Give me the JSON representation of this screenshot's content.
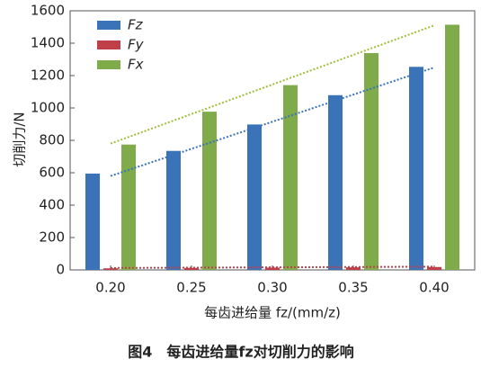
{
  "chart_data": {
    "type": "bar",
    "categories": [
      "0.20",
      "0.25",
      "0.30",
      "0.35",
      "0.40"
    ],
    "series": [
      {
        "name": "Fz",
        "color": "#3b73b9",
        "values": [
          595,
          735,
          898,
          1079,
          1254
        ]
      },
      {
        "name": "Fy",
        "color": "#c0404a",
        "values": [
          10,
          12,
          14,
          16,
          18
        ]
      },
      {
        "name": "Fx",
        "color": "#7fab4a",
        "values": [
          774,
          977,
          1141,
          1339,
          1514
        ]
      }
    ],
    "trend_lines": [
      {
        "color": "#3b73b9",
        "values": [
          580,
          1250
        ]
      },
      {
        "color": "#c0404a",
        "values": [
          12,
          20
        ]
      },
      {
        "color": "#9fbf3a",
        "values": [
          780,
          1510
        ]
      }
    ],
    "ylim": [
      0,
      1600
    ],
    "yticks": [
      0,
      200,
      400,
      600,
      800,
      1000,
      1200,
      1400,
      1600
    ],
    "ylabel": "切削力/N",
    "xlabel": "每齿进给量 fz/(mm/z)",
    "caption": "图4　每齿进给量fz对切削力的影响",
    "legend": "upper left"
  }
}
